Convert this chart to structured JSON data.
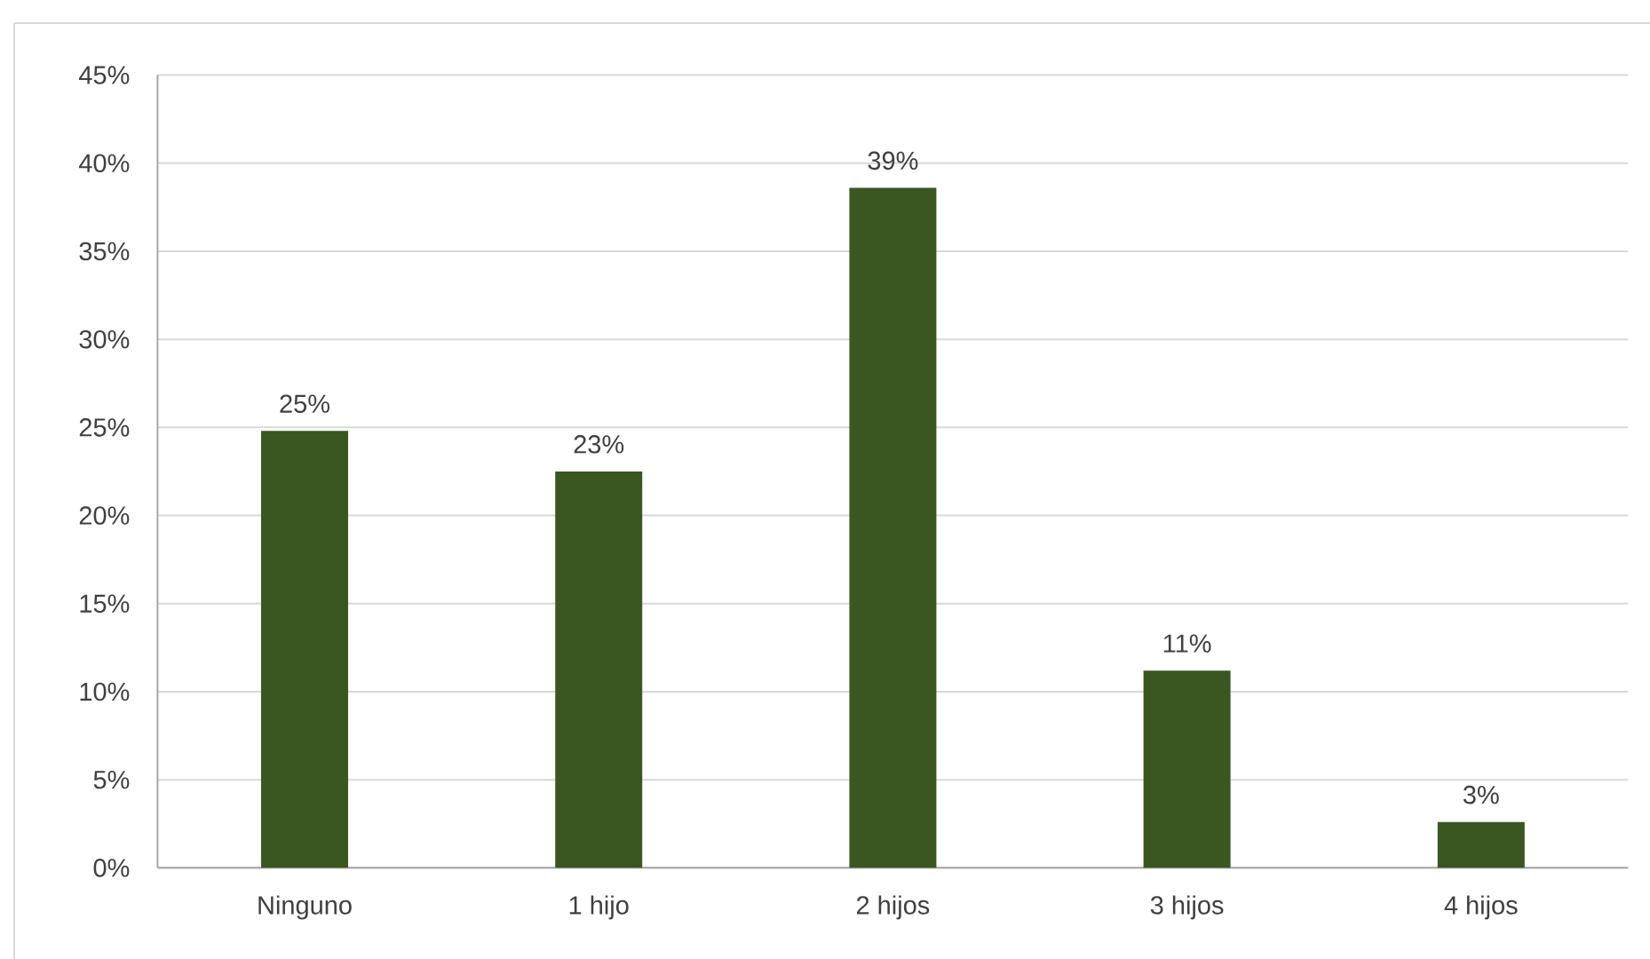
{
  "chart_data": {
    "type": "bar",
    "categories": [
      "Ninguno",
      "1 hijo",
      "2 hijos",
      "3 hijos",
      "4 hijos"
    ],
    "values": [
      24.8,
      22.5,
      38.6,
      11.2,
      2.6
    ],
    "value_labels": [
      "25%",
      "23%",
      "39%",
      "11%",
      "3%"
    ],
    "color": "#3a5722",
    "ylim": [
      0,
      45
    ],
    "yticks": [
      {
        "value": 0,
        "label": "0%"
      },
      {
        "value": 5,
        "label": "5%"
      },
      {
        "value": 10,
        "label": "10%"
      },
      {
        "value": 15,
        "label": "15%"
      },
      {
        "value": 20,
        "label": "20%"
      },
      {
        "value": 25,
        "label": "25%"
      },
      {
        "value": 30,
        "label": "30%"
      },
      {
        "value": 35,
        "label": "35%"
      },
      {
        "value": 40,
        "label": "40%"
      },
      {
        "value": 45,
        "label": "45%"
      }
    ],
    "grid": "y"
  }
}
